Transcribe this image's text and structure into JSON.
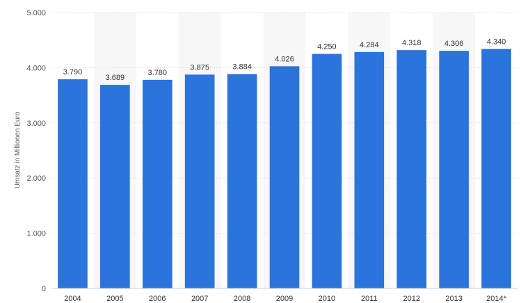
{
  "chart_data": {
    "type": "bar",
    "title": "",
    "xlabel": "",
    "ylabel": "Umsatz in Millionen Euro",
    "categories": [
      "2004",
      "2005",
      "2006",
      "2007",
      "2008",
      "2009",
      "2010",
      "2011",
      "2012",
      "2013",
      "2014*"
    ],
    "values": [
      3790,
      3689,
      3780,
      3875,
      3884,
      4026,
      4250,
      4284,
      4318,
      4306,
      4340
    ],
    "value_labels": [
      "3.790",
      "3.689",
      "3.780",
      "3.875",
      "3.884",
      "4.026",
      "4.250",
      "4.284",
      "4.318",
      "4.306",
      "4.340"
    ],
    "ylim": [
      0,
      5000
    ],
    "yticks": [
      0,
      1000,
      2000,
      3000,
      4000,
      5000
    ],
    "ytick_labels": [
      "0",
      "1.000",
      "2.000",
      "3.000",
      "4.000",
      "5.000"
    ],
    "grid": true,
    "legend": "none",
    "colors": {
      "bar": "#2a74db",
      "band": "#f7f7f7",
      "grid": "#d9d9d9"
    }
  }
}
